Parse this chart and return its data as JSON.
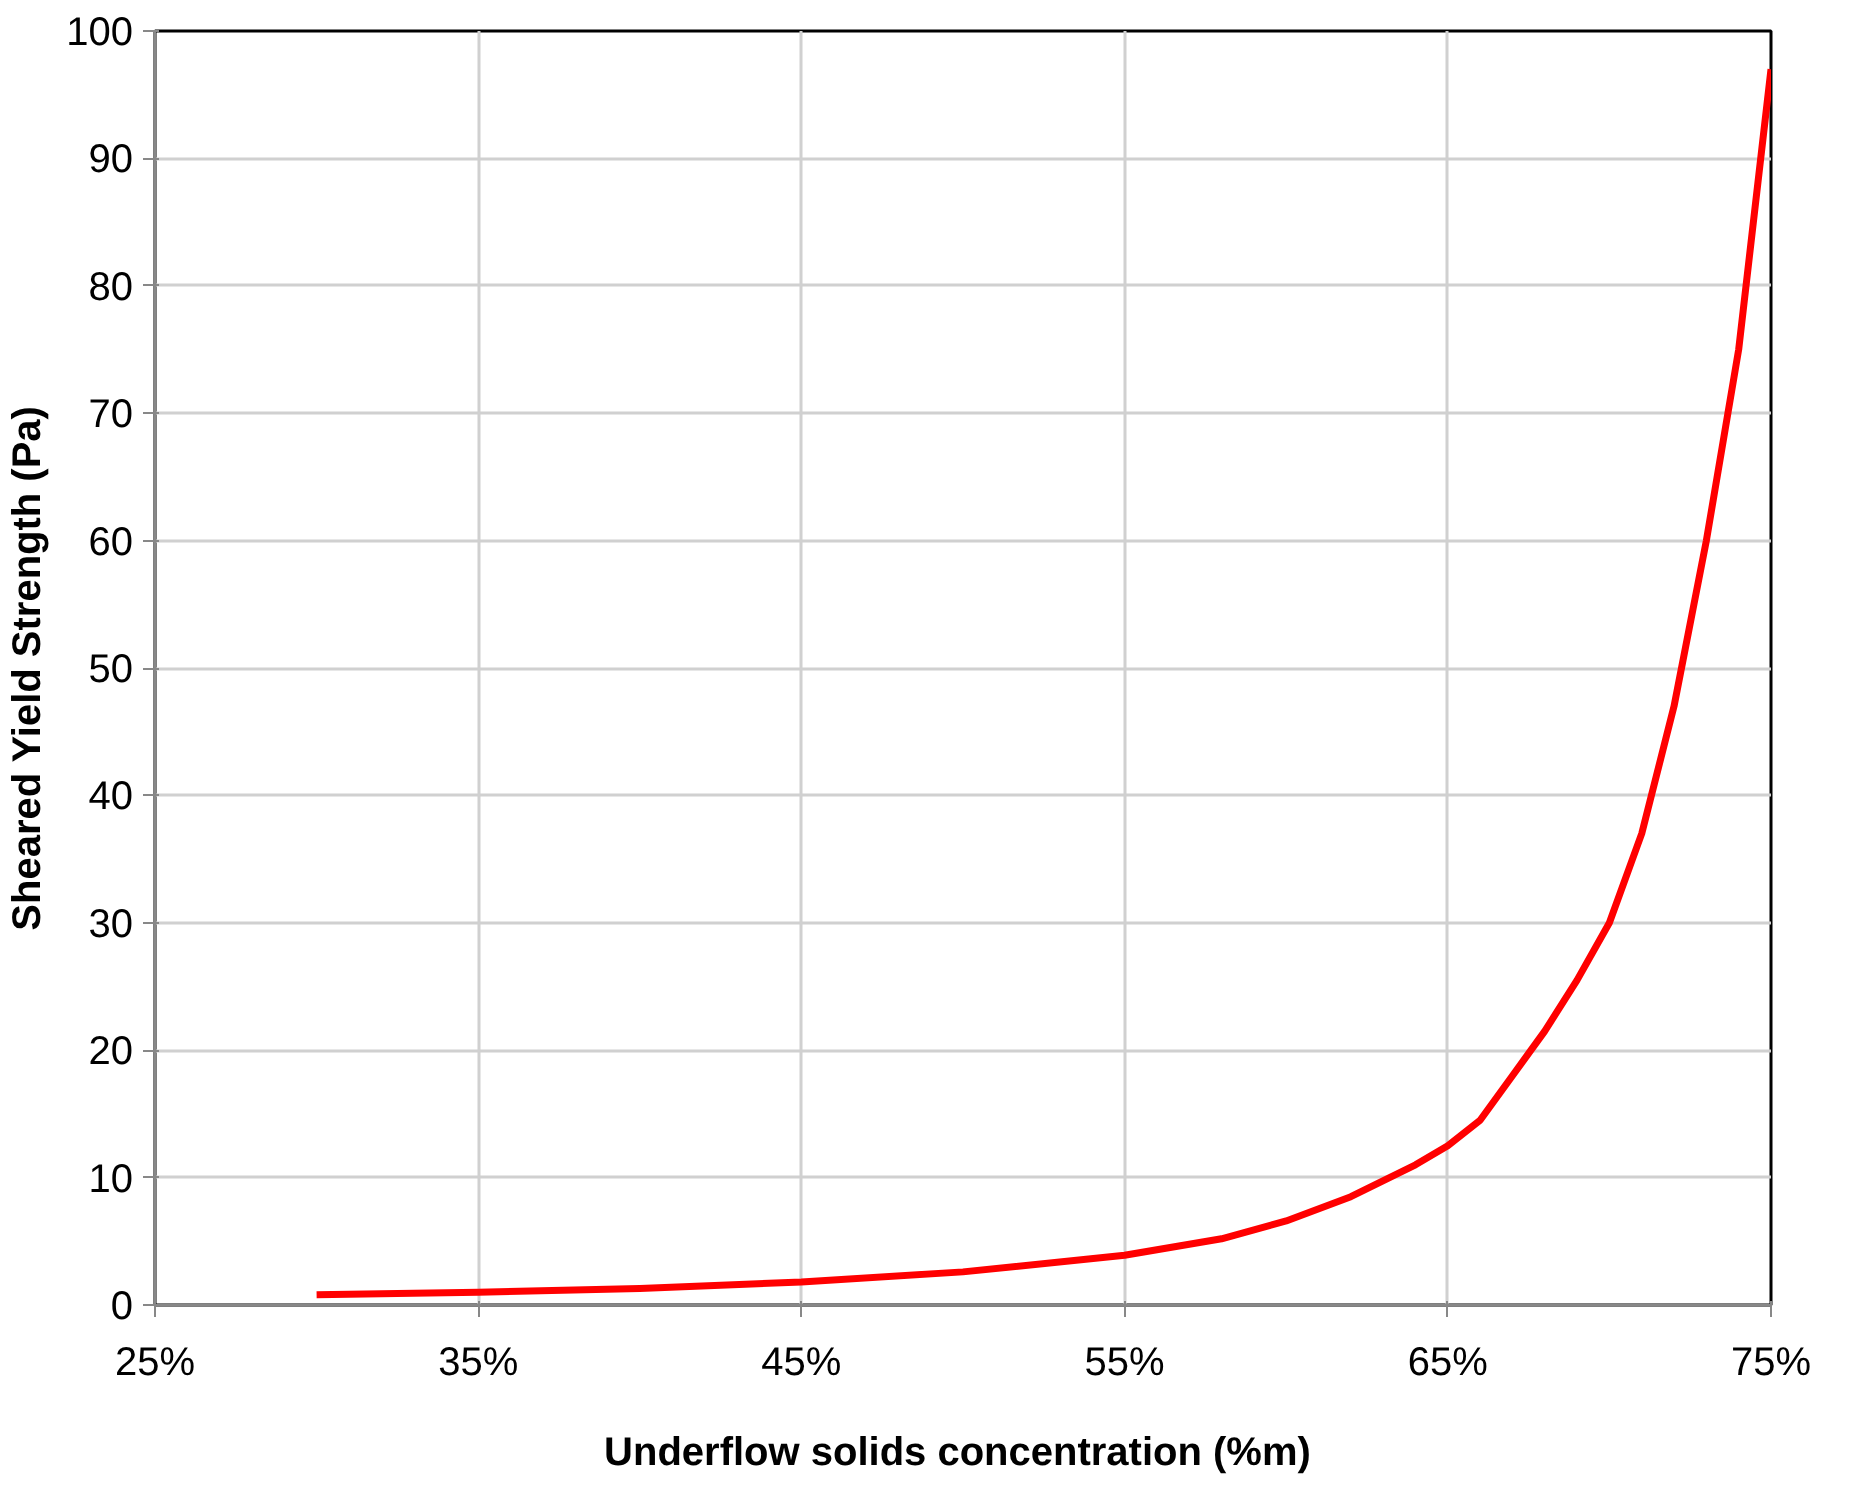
{
  "chart_data": {
    "type": "line",
    "xlabel": "Underflow solids  concentration (%m)",
    "ylabel": "Sheared Yield Strength (Pa)",
    "x": [
      30,
      35,
      40,
      45,
      50,
      55,
      58,
      60,
      62,
      64,
      65,
      66,
      67,
      68,
      69,
      70,
      71,
      72,
      73,
      74,
      75
    ],
    "series": [
      {
        "color": "#ff0000",
        "values": [
          0.8,
          1.0,
          1.3,
          1.8,
          2.6,
          3.9,
          5.2,
          6.6,
          8.5,
          11,
          12.5,
          14.5,
          18,
          21.5,
          25.5,
          30,
          37,
          47,
          60,
          75,
          97
        ]
      }
    ],
    "xlim": [
      25,
      75
    ],
    "ylim": [
      0,
      100
    ],
    "xticks": [
      {
        "value": 25,
        "label": "25%"
      },
      {
        "value": 35,
        "label": "35%"
      },
      {
        "value": 45,
        "label": "45%"
      },
      {
        "value": 55,
        "label": "55%"
      },
      {
        "value": 65,
        "label": "65%"
      },
      {
        "value": 75,
        "label": "75%"
      }
    ],
    "yticks": [
      0,
      10,
      20,
      30,
      40,
      50,
      60,
      70,
      80,
      90,
      100
    ],
    "grid": true,
    "marker": "none",
    "line_style": "solid"
  }
}
